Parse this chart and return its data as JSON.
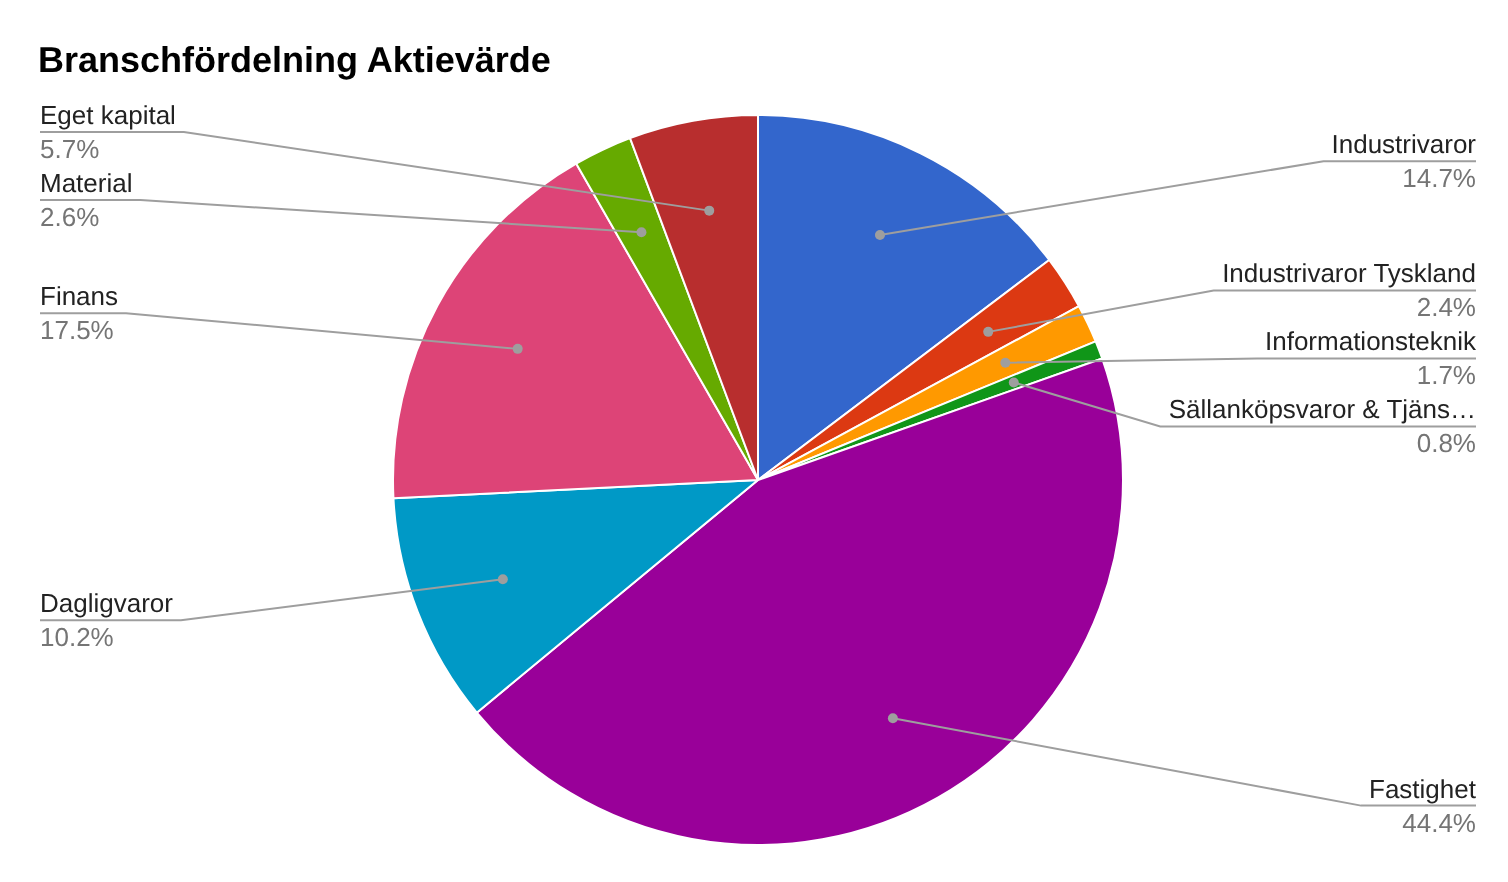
{
  "chart_data": {
    "type": "pie",
    "title": "Branschfördelning Aktievärde",
    "categories": [
      "Industrivaror",
      "Industrivaror Tyskland",
      "Informationsteknik",
      "Sällanköpsvaror & Tjäns…",
      "Fastighet",
      "Dagligvaror",
      "Finans",
      "Material",
      "Eget kapital"
    ],
    "values": [
      14.7,
      2.4,
      1.7,
      0.8,
      44.4,
      10.2,
      17.5,
      2.6,
      5.7
    ],
    "colors": [
      "#3366cc",
      "#dc3912",
      "#ff9900",
      "#109618",
      "#990099",
      "#0099c6",
      "#dd4477",
      "#66aa00",
      "#b82e2e"
    ],
    "value_labels": [
      "14.7%",
      "2.4%",
      "1.7%",
      "0.8%",
      "44.4%",
      "10.2%",
      "17.5%",
      "2.6%",
      "5.7%"
    ]
  }
}
